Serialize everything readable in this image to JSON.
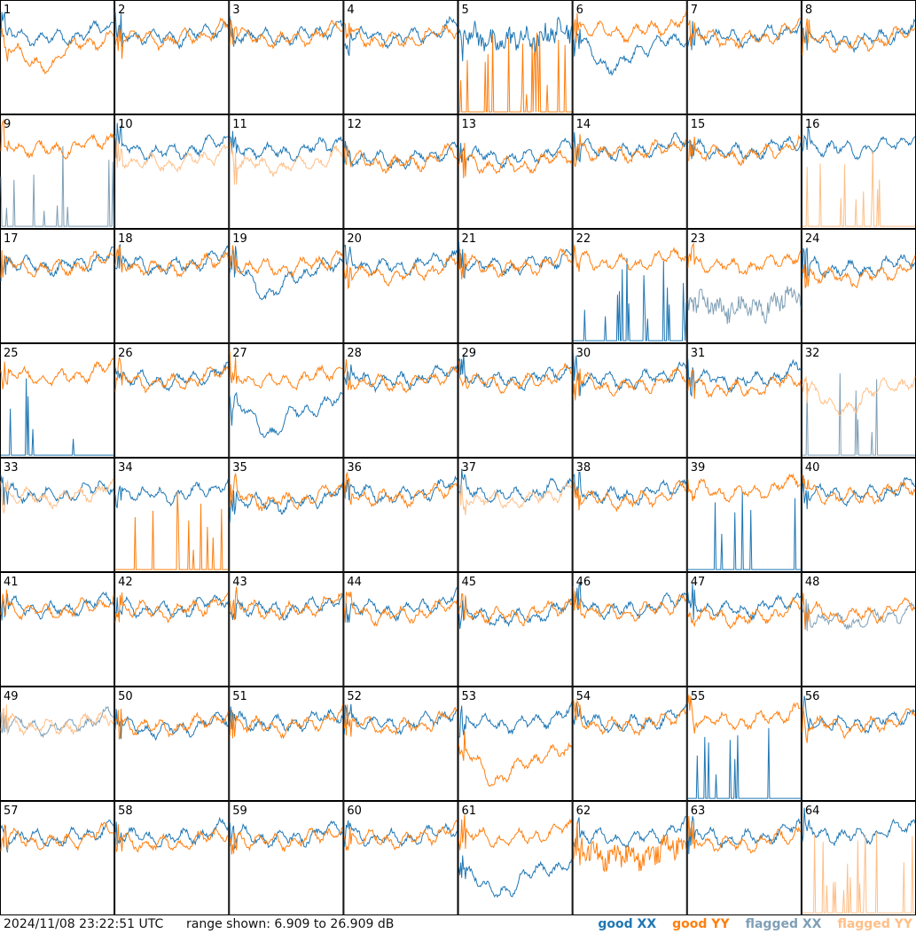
{
  "colors": {
    "good_xx": "#1f77b4",
    "good_yy": "#ff7f0e",
    "flagged_xx": "#7f9fb6",
    "flagged_yy": "#ffbf87",
    "border": "#000000"
  },
  "footer": {
    "timestamp": "2024/11/08 23:22:51 UTC",
    "range": "range shown: 6.909 to 26.909 dB"
  },
  "legend": [
    {
      "label": "good XX",
      "color": "#1f77b4"
    },
    {
      "label": "good YY",
      "color": "#ff7f0e"
    },
    {
      "label": "flagged XX",
      "color": "#7f9fb6"
    },
    {
      "label": "flagged YY",
      "color": "#ffbf87"
    }
  ],
  "chart_data": {
    "type": "line",
    "grid": {
      "rows": 8,
      "cols": 8
    },
    "ylim": [
      6.909,
      26.909
    ],
    "unit": "dB",
    "panel_labels": [
      "1",
      "2",
      "3",
      "4",
      "5",
      "6",
      "7",
      "8",
      "9",
      "10",
      "11",
      "12",
      "13",
      "14",
      "15",
      "16",
      "17",
      "18",
      "19",
      "20",
      "21",
      "22",
      "23",
      "24",
      "25",
      "26",
      "27",
      "28",
      "29",
      "30",
      "31",
      "32",
      "33",
      "34",
      "35",
      "36",
      "37",
      "38",
      "39",
      "40",
      "41",
      "42",
      "43",
      "44",
      "45",
      "46",
      "47",
      "48",
      "49",
      "50",
      "51",
      "52",
      "53",
      "54",
      "55",
      "56",
      "57",
      "58",
      "59",
      "60",
      "61",
      "62",
      "63",
      "64"
    ],
    "panels": [
      {
        "xx": "good",
        "yy": "good",
        "xx_level": 21.5,
        "yy_level": 19.5,
        "xx_pattern": "normal",
        "yy_pattern": "dip"
      },
      {
        "xx": "good",
        "yy": "good",
        "xx_level": 21.5,
        "yy_level": 21.2,
        "xx_pattern": "normal",
        "yy_pattern": "normal"
      },
      {
        "xx": "good",
        "yy": "good",
        "xx_level": 21.5,
        "yy_level": 21.2,
        "xx_pattern": "normal",
        "yy_pattern": "normal"
      },
      {
        "xx": "good",
        "yy": "good",
        "xx_level": 21.5,
        "yy_level": 21.0,
        "xx_pattern": "normal",
        "yy_pattern": "normal"
      },
      {
        "xx": "good",
        "yy": "good",
        "xx_level": 21.0,
        "yy_level": 7.2,
        "xx_pattern": "noisy",
        "yy_pattern": "spikes"
      },
      {
        "xx": "good",
        "yy": "good",
        "xx_level": 19.5,
        "yy_level": 22.5,
        "xx_pattern": "dip",
        "yy_pattern": "normal"
      },
      {
        "xx": "good",
        "yy": "good",
        "xx_level": 21.5,
        "yy_level": 21.2,
        "xx_pattern": "normal",
        "yy_pattern": "normal"
      },
      {
        "xx": "good",
        "yy": "good",
        "xx_level": 21.0,
        "yy_level": 20.5,
        "xx_pattern": "normal",
        "yy_pattern": "normal"
      },
      {
        "xx": "flagged",
        "yy": "good",
        "xx_level": 7.2,
        "yy_level": 22.0,
        "xx_pattern": "spikes",
        "yy_pattern": "normal"
      },
      {
        "xx": "good",
        "yy": "flagged",
        "xx_level": 21.5,
        "yy_level": 19.5,
        "xx_pattern": "normal",
        "yy_pattern": "normal"
      },
      {
        "xx": "good",
        "yy": "flagged",
        "xx_level": 21.5,
        "yy_level": 19.0,
        "xx_pattern": "normal",
        "yy_pattern": "normal"
      },
      {
        "xx": "good",
        "yy": "good",
        "xx_level": 20.0,
        "yy_level": 19.5,
        "xx_pattern": "normal",
        "yy_pattern": "normal"
      },
      {
        "xx": "good",
        "yy": "good",
        "xx_level": 20.5,
        "yy_level": 19.0,
        "xx_pattern": "normal",
        "yy_pattern": "normal"
      },
      {
        "xx": "good",
        "yy": "good",
        "xx_level": 21.5,
        "yy_level": 21.2,
        "xx_pattern": "normal",
        "yy_pattern": "normal"
      },
      {
        "xx": "good",
        "yy": "good",
        "xx_level": 21.5,
        "yy_level": 21.0,
        "xx_pattern": "normal",
        "yy_pattern": "normal"
      },
      {
        "xx": "good",
        "yy": "flagged",
        "xx_level": 22.0,
        "yy_level": 7.2,
        "xx_pattern": "normal",
        "yy_pattern": "spikes"
      },
      {
        "xx": "good",
        "yy": "good",
        "xx_level": 21.5,
        "yy_level": 21.2,
        "xx_pattern": "normal",
        "yy_pattern": "normal"
      },
      {
        "xx": "good",
        "yy": "good",
        "xx_level": 21.5,
        "yy_level": 21.2,
        "xx_pattern": "normal",
        "yy_pattern": "normal"
      },
      {
        "xx": "good",
        "yy": "good",
        "xx_level": 20.0,
        "yy_level": 21.2,
        "xx_pattern": "dip",
        "yy_pattern": "normal"
      },
      {
        "xx": "good",
        "yy": "good",
        "xx_level": 21.5,
        "yy_level": 20.0,
        "xx_pattern": "normal",
        "yy_pattern": "normal"
      },
      {
        "xx": "good",
        "yy": "good",
        "xx_level": 21.5,
        "yy_level": 21.2,
        "xx_pattern": "normal",
        "yy_pattern": "normal"
      },
      {
        "xx": "good",
        "yy": "good",
        "xx_level": 7.2,
        "yy_level": 22.0,
        "xx_pattern": "spikes",
        "yy_pattern": "normal"
      },
      {
        "xx": "flagged",
        "yy": "good",
        "xx_level": 14.0,
        "yy_level": 21.5,
        "xx_pattern": "noisy",
        "yy_pattern": "normal"
      },
      {
        "xx": "good",
        "yy": "good",
        "xx_level": 21.0,
        "yy_level": 19.5,
        "xx_pattern": "normal",
        "yy_pattern": "normal"
      },
      {
        "xx": "good",
        "yy": "good",
        "xx_level": 7.2,
        "yy_level": 22.0,
        "xx_pattern": "spikes",
        "yy_pattern": "normal"
      },
      {
        "xx": "good",
        "yy": "good",
        "xx_level": 21.5,
        "yy_level": 21.2,
        "xx_pattern": "normal",
        "yy_pattern": "normal"
      },
      {
        "xx": "good",
        "yy": "good",
        "xx_level": 16.0,
        "yy_level": 21.5,
        "xx_pattern": "dip",
        "yy_pattern": "normal"
      },
      {
        "xx": "good",
        "yy": "good",
        "xx_level": 21.5,
        "yy_level": 21.0,
        "xx_pattern": "normal",
        "yy_pattern": "normal"
      },
      {
        "xx": "good",
        "yy": "good",
        "xx_level": 21.5,
        "yy_level": 21.0,
        "xx_pattern": "normal",
        "yy_pattern": "normal"
      },
      {
        "xx": "good",
        "yy": "good",
        "xx_level": 21.5,
        "yy_level": 20.5,
        "xx_pattern": "normal",
        "yy_pattern": "normal"
      },
      {
        "xx": "good",
        "yy": "good",
        "xx_level": 21.5,
        "yy_level": 20.0,
        "xx_pattern": "normal",
        "yy_pattern": "normal"
      },
      {
        "xx": "flagged",
        "yy": "flagged",
        "xx_level": 7.2,
        "yy_level": 19.5,
        "xx_pattern": "spikes",
        "yy_pattern": "dip"
      },
      {
        "xx": "good",
        "yy": "flagged",
        "xx_level": 21.5,
        "yy_level": 21.0,
        "xx_pattern": "normal",
        "yy_pattern": "normal"
      },
      {
        "xx": "good",
        "yy": "good",
        "xx_level": 21.5,
        "yy_level": 7.2,
        "xx_pattern": "normal",
        "yy_pattern": "spikes"
      },
      {
        "xx": "good",
        "yy": "good",
        "xx_level": 20.0,
        "yy_level": 20.5,
        "xx_pattern": "normal",
        "yy_pattern": "normal"
      },
      {
        "xx": "good",
        "yy": "good",
        "xx_level": 21.5,
        "yy_level": 21.0,
        "xx_pattern": "normal",
        "yy_pattern": "normal"
      },
      {
        "xx": "good",
        "yy": "flagged",
        "xx_level": 21.5,
        "yy_level": 20.5,
        "xx_pattern": "normal",
        "yy_pattern": "normal"
      },
      {
        "xx": "good",
        "yy": "good",
        "xx_level": 21.5,
        "yy_level": 20.5,
        "xx_pattern": "normal",
        "yy_pattern": "normal"
      },
      {
        "xx": "good",
        "yy": "good",
        "xx_level": 7.2,
        "yy_level": 22.0,
        "xx_pattern": "spikes",
        "yy_pattern": "normal"
      },
      {
        "xx": "good",
        "yy": "good",
        "xx_level": 21.5,
        "yy_level": 21.2,
        "xx_pattern": "normal",
        "yy_pattern": "normal"
      },
      {
        "xx": "good",
        "yy": "good",
        "xx_level": 21.5,
        "yy_level": 21.2,
        "xx_pattern": "normal",
        "yy_pattern": "normal"
      },
      {
        "xx": "good",
        "yy": "good",
        "xx_level": 21.5,
        "yy_level": 21.2,
        "xx_pattern": "normal",
        "yy_pattern": "normal"
      },
      {
        "xx": "good",
        "yy": "good",
        "xx_level": 21.5,
        "yy_level": 21.2,
        "xx_pattern": "normal",
        "yy_pattern": "normal"
      },
      {
        "xx": "good",
        "yy": "good",
        "xx_level": 21.5,
        "yy_level": 20.5,
        "xx_pattern": "normal",
        "yy_pattern": "normal"
      },
      {
        "xx": "good",
        "yy": "good",
        "xx_level": 20.0,
        "yy_level": 20.5,
        "xx_pattern": "normal",
        "yy_pattern": "normal"
      },
      {
        "xx": "good",
        "yy": "good",
        "xx_level": 21.5,
        "yy_level": 21.0,
        "xx_pattern": "normal",
        "yy_pattern": "normal"
      },
      {
        "xx": "good",
        "yy": "good",
        "xx_level": 21.5,
        "yy_level": 20.0,
        "xx_pattern": "normal",
        "yy_pattern": "normal"
      },
      {
        "xx": "flagged",
        "yy": "good",
        "xx_level": 19.5,
        "yy_level": 20.5,
        "xx_pattern": "normal",
        "yy_pattern": "normal"
      },
      {
        "xx": "flagged",
        "yy": "flagged",
        "xx_level": 21.0,
        "yy_level": 21.0,
        "xx_pattern": "normal",
        "yy_pattern": "normal"
      },
      {
        "xx": "good",
        "yy": "good",
        "xx_level": 20.5,
        "yy_level": 21.0,
        "xx_pattern": "normal",
        "yy_pattern": "normal"
      },
      {
        "xx": "good",
        "yy": "good",
        "xx_level": 21.5,
        "yy_level": 21.0,
        "xx_pattern": "normal",
        "yy_pattern": "normal"
      },
      {
        "xx": "good",
        "yy": "good",
        "xx_level": 21.5,
        "yy_level": 21.0,
        "xx_pattern": "normal",
        "yy_pattern": "normal"
      },
      {
        "xx": "good",
        "yy": "good",
        "xx_level": 21.5,
        "yy_level": 15.0,
        "xx_pattern": "normal",
        "yy_pattern": "dip"
      },
      {
        "xx": "good",
        "yy": "good",
        "xx_level": 21.5,
        "yy_level": 21.2,
        "xx_pattern": "normal",
        "yy_pattern": "normal"
      },
      {
        "xx": "good",
        "yy": "good",
        "xx_level": 7.5,
        "yy_level": 22.0,
        "xx_pattern": "spikes",
        "yy_pattern": "normal"
      },
      {
        "xx": "good",
        "yy": "good",
        "xx_level": 21.5,
        "yy_level": 21.0,
        "xx_pattern": "normal",
        "yy_pattern": "normal"
      },
      {
        "xx": "good",
        "yy": "good",
        "xx_level": 21.5,
        "yy_level": 21.0,
        "xx_pattern": "normal",
        "yy_pattern": "normal"
      },
      {
        "xx": "good",
        "yy": "good",
        "xx_level": 21.5,
        "yy_level": 20.5,
        "xx_pattern": "normal",
        "yy_pattern": "normal"
      },
      {
        "xx": "good",
        "yy": "good",
        "xx_level": 21.5,
        "yy_level": 21.0,
        "xx_pattern": "normal",
        "yy_pattern": "normal"
      },
      {
        "xx": "good",
        "yy": "good",
        "xx_level": 21.5,
        "yy_level": 21.2,
        "xx_pattern": "normal",
        "yy_pattern": "normal"
      },
      {
        "xx": "good",
        "yy": "good",
        "xx_level": 15.0,
        "yy_level": 21.5,
        "xx_pattern": "dip",
        "yy_pattern": "normal"
      },
      {
        "xx": "good",
        "yy": "good",
        "xx_level": 21.5,
        "yy_level": 18.5,
        "xx_pattern": "normal",
        "yy_pattern": "noisy"
      },
      {
        "xx": "good",
        "yy": "good",
        "xx_level": 21.5,
        "yy_level": 20.5,
        "xx_pattern": "normal",
        "yy_pattern": "normal"
      },
      {
        "xx": "good",
        "yy": "flagged",
        "xx_level": 22.0,
        "yy_level": 7.2,
        "xx_pattern": "normal",
        "yy_pattern": "spikes"
      }
    ]
  }
}
